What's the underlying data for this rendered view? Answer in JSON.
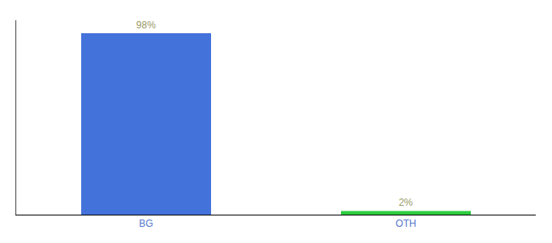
{
  "chart_data": {
    "type": "bar",
    "categories": [
      "BG",
      "OTH"
    ],
    "values": [
      98,
      2
    ],
    "value_labels": [
      "98%",
      "2%"
    ],
    "colors": [
      "#4472db",
      "#2ecc40"
    ],
    "ylim": [
      0,
      105
    ],
    "data_labels": true,
    "tick_labels": "x",
    "grid": false
  }
}
